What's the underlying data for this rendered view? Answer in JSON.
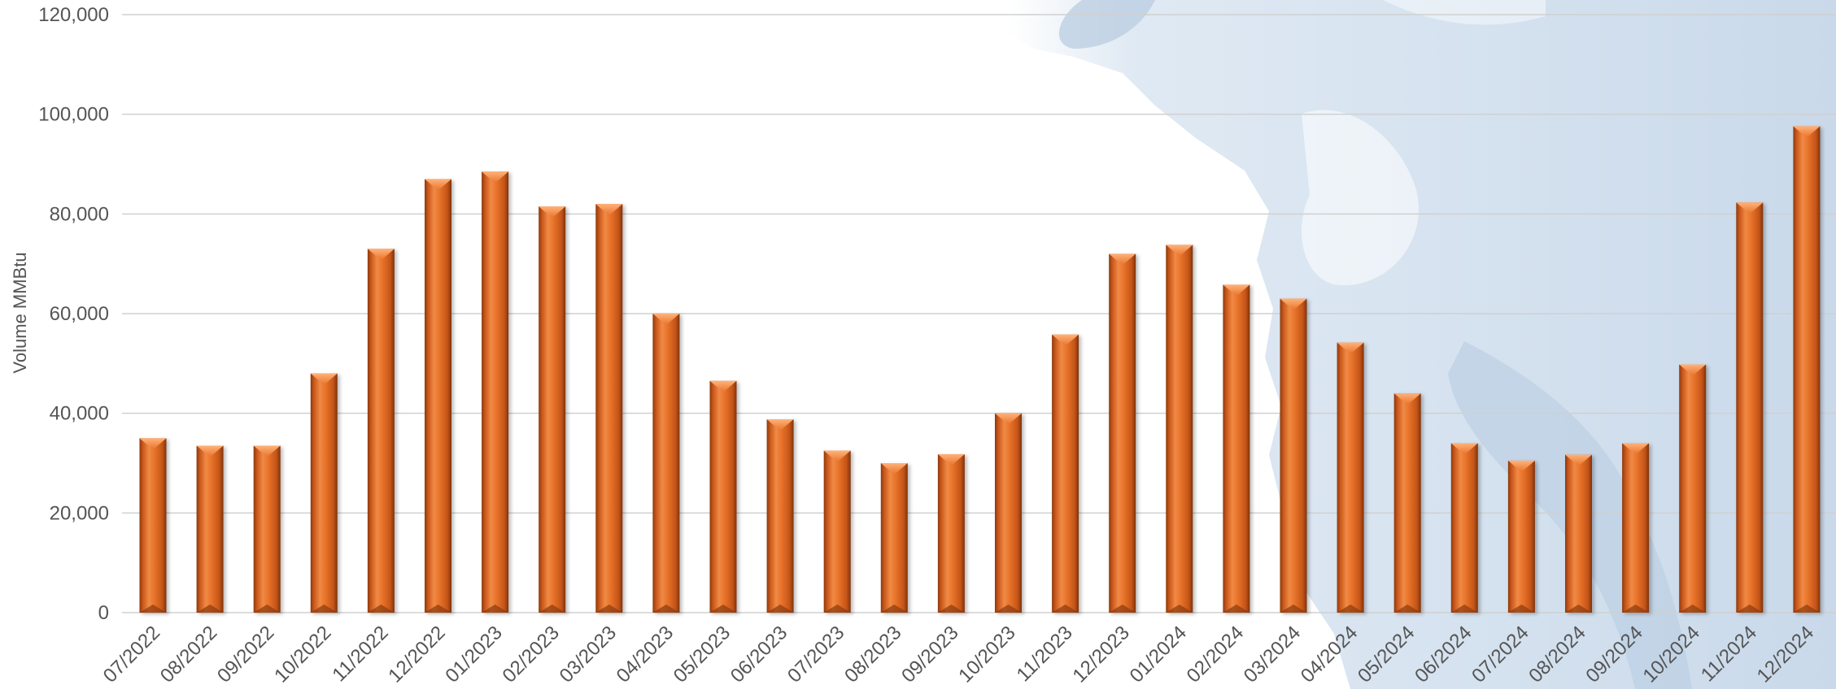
{
  "chart_data": {
    "type": "bar",
    "title": "",
    "xlabel": "",
    "ylabel": "Volume MMBtu",
    "ylim": [
      0,
      120000
    ],
    "yticks": [
      0,
      20000,
      40000,
      60000,
      80000,
      100000,
      120000
    ],
    "ytick_labels": [
      "0",
      "20,000",
      "40,000",
      "60,000",
      "80,000",
      "100,000",
      "120,000"
    ],
    "grid": true,
    "legend": "none",
    "bar_color": "#E8732A",
    "background": "map-watermark",
    "categories": [
      "07/2022",
      "08/2022",
      "09/2022",
      "10/2022",
      "11/2022",
      "12/2022",
      "01/2023",
      "02/2023",
      "03/2023",
      "04/2023",
      "05/2023",
      "06/2023",
      "07/2023",
      "08/2023",
      "09/2023",
      "10/2023",
      "11/2023",
      "12/2023",
      "01/2024",
      "02/2024",
      "03/2024",
      "04/2024",
      "05/2024",
      "06/2024",
      "07/2024",
      "08/2024",
      "09/2024",
      "10/2024",
      "11/2024",
      "12/2024"
    ],
    "values": [
      35000,
      33500,
      33500,
      48000,
      73000,
      87000,
      88500,
      81500,
      82000,
      60000,
      46500,
      38800,
      32500,
      30000,
      31800,
      40000,
      55800,
      72000,
      73800,
      65800,
      63000,
      54200,
      44000,
      34000,
      30500,
      31700,
      34000,
      49800,
      82300,
      97600
    ]
  }
}
